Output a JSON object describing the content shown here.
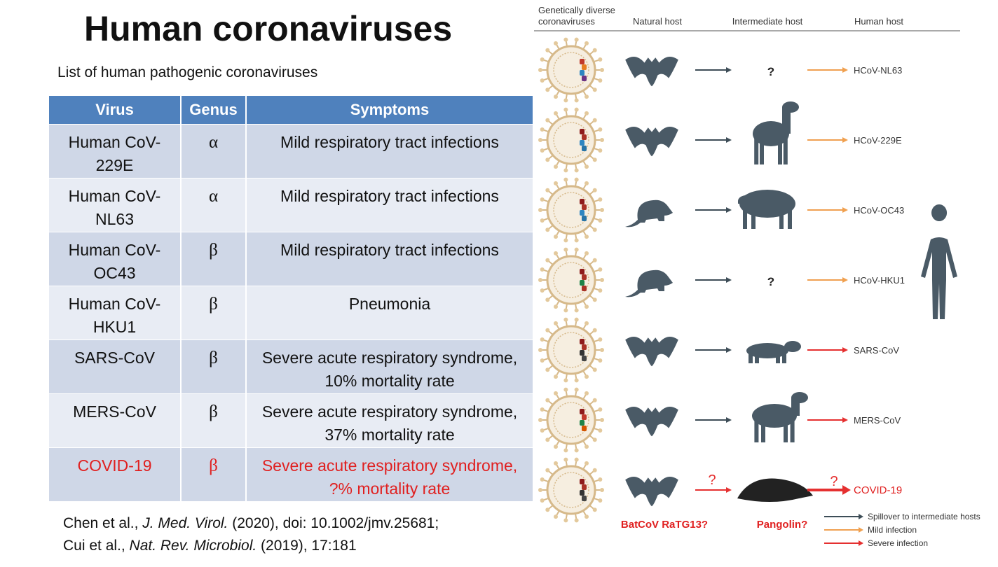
{
  "title": "Human coronaviruses",
  "subtitle": "List of human pathogenic coronaviruses",
  "table": {
    "headers": [
      "Virus",
      "Genus",
      "Symptoms"
    ],
    "rows": [
      [
        "Human CoV-\n229E",
        "α",
        "Mild respiratory tract infections"
      ],
      [
        "Human CoV-\nNL63",
        "α",
        "Mild respiratory tract infections"
      ],
      [
        "Human CoV-\nOC43",
        "β",
        "Mild respiratory tract infections"
      ],
      [
        "Human CoV-\nHKU1",
        "β",
        "Pneumonia"
      ],
      [
        "SARS-CoV",
        "β",
        "Severe acute respiratory syndrome, 10% mortality rate"
      ],
      [
        "MERS-CoV",
        "β",
        "Severe acute respiratory syndrome, 37% mortality rate"
      ],
      [
        "COVID-19",
        "β",
        "Severe acute respiratory syndrome, ?% mortality rate"
      ]
    ]
  },
  "citations": [
    [
      "Chen et al., ",
      "J. Med. Virol.",
      " (2020), doi: 10.1002/jmv.25681;"
    ],
    [
      "Cui et al., ",
      "Nat. Rev. Microbiol.",
      " (2019), 17:181"
    ]
  ],
  "diagram": {
    "headers": [
      "Genetically diverse",
      "coronaviruses",
      "Natural host",
      "Intermediate host",
      "Human host"
    ],
    "rows": [
      {
        "intermediate": "?",
        "human": "HCoV-NL63"
      },
      {
        "human": "HCoV-229E"
      },
      {
        "human": "HCoV-OC43"
      },
      {
        "intermediate": "?",
        "human": "HCoV-HKU1"
      },
      {
        "human": "SARS-CoV"
      },
      {
        "human": "MERS-CoV"
      },
      {
        "natural_arrow": "?",
        "human_arrow": "?",
        "human": "COVID-19"
      }
    ],
    "natural_label": "BatCoV RaTG13?",
    "intermediate_label": "Pangolin?",
    "legend": [
      "Spillover to intermediate hosts",
      "Mild infection",
      "Severe infection"
    ]
  }
}
